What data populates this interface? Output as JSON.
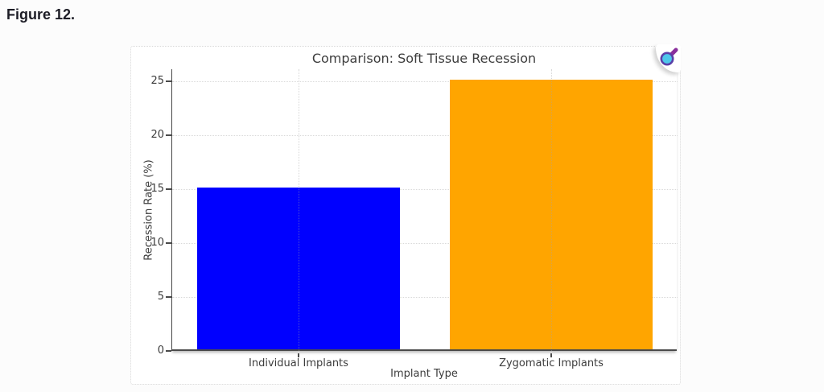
{
  "figure_label": "Figure 12.",
  "chart_data": {
    "type": "bar",
    "title": "Comparison: Soft Tissue Recession",
    "xlabel": "Implant Type",
    "ylabel": "Recession Rate (%)",
    "categories": [
      "Individual Implants",
      "Zygomatic Implants"
    ],
    "values": [
      15,
      25
    ],
    "bar_colors": [
      "#0000ff",
      "#ffa500"
    ],
    "ylim": [
      0,
      25
    ],
    "yticks": [
      0,
      5,
      10,
      15,
      20,
      25
    ],
    "grid": true,
    "grid_style": "dotted",
    "legend_position": "none"
  },
  "toolbar": {
    "zoom_button": "magnifier"
  },
  "colors": {
    "page_background": "#fcfcfc",
    "card_background": "#ffffff",
    "axis": "#4a4a4a",
    "grid": "#d9d9d9",
    "text": "#3d3d3d",
    "figure_label_text": "#1d1d26",
    "magnifier_lens": "#4ec7ea",
    "magnifier_ring": "#5b3fa8",
    "magnifier_handle": "#8a2f9c"
  }
}
